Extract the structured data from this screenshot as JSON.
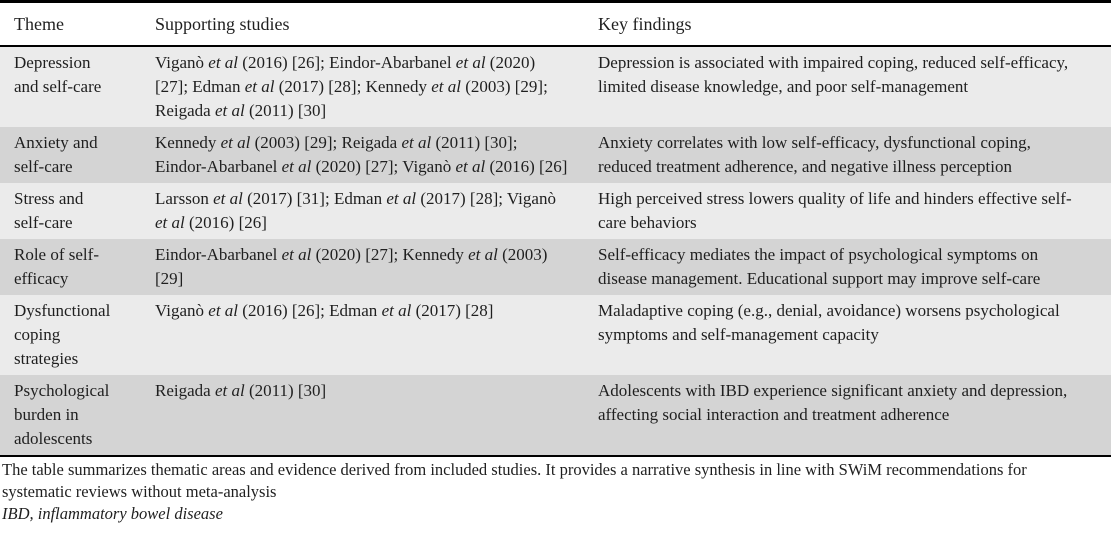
{
  "colors": {
    "row_light": "#ebebeb",
    "row_dark": "#d4d4d4",
    "border": "#000000",
    "text": "#1f1f1f"
  },
  "table": {
    "headers": [
      "Theme",
      "Supporting studies",
      "Key findings"
    ],
    "rows": [
      {
        "theme": "Depression and self-care",
        "studies": "Viganò et al (2016) [26]; Eindor-Abarbanel et al (2020) [27]; Edman et al (2017) [28]; Kennedy et al (2003) [29]; Reigada et al (2011) [30]",
        "findings": "Depression is associated with impaired coping, reduced self-efficacy, limited disease knowledge, and poor self-management"
      },
      {
        "theme": "Anxiety and self-care",
        "studies": "Kennedy et al (2003) [29]; Reigada et al (2011) [30]; Eindor-Abarbanel et al (2020) [27]; Viganò et al (2016) [26]",
        "findings": "Anxiety correlates with low self-efficacy, dysfunctional coping, reduced treatment adherence, and negative illness perception"
      },
      {
        "theme": "Stress and self-care",
        "studies": "Larsson et al (2017) [31]; Edman et al (2017) [28]; Viganò et al (2016) [26]",
        "findings": "High perceived stress lowers quality of life and hinders effective self-care behaviors"
      },
      {
        "theme": "Role of self-efficacy",
        "studies": "Eindor-Abarbanel et al (2020) [27]; Kennedy et al (2003) [29]",
        "findings": "Self-efficacy mediates the impact of psychological symptoms on disease management. Educational support may improve self-care"
      },
      {
        "theme": "Dysfunctional coping strategies",
        "studies": "Viganò et al (2016) [26]; Edman et al (2017) [28]",
        "findings": "Maladaptive coping (e.g., denial, avoidance) worsens psychological symptoms and self-management capacity"
      },
      {
        "theme": "Psychological burden in adolescents",
        "studies": "Reigada et al (2011) [30]",
        "findings": "Adolescents with IBD experience significant anxiety and depression, affecting social interaction and treatment adherence"
      }
    ]
  },
  "footnotes": [
    {
      "text": "The table summarizes thematic areas and evidence derived from included studies. It provides a narrative synthesis in line with SWiM recommendations for systematic reviews without meta-analysis",
      "italic": false
    },
    {
      "text": "IBD, inflammatory bowel disease",
      "italic": true
    }
  ]
}
